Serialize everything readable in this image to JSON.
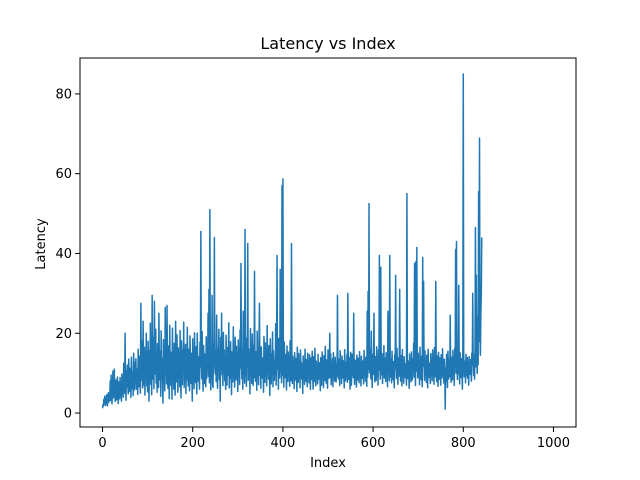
{
  "chart_data": {
    "type": "line",
    "title": "Latency vs Index",
    "xlabel": "Index",
    "ylabel": "Latency",
    "xlim": [
      -50,
      1050
    ],
    "ylim": [
      -3.5,
      89
    ],
    "grid": false,
    "x_ticks": [
      0,
      200,
      400,
      600,
      800,
      1000
    ],
    "y_ticks": [
      0,
      20,
      40,
      60,
      80
    ],
    "x_tick_labels": [
      "0",
      "200",
      "400",
      "600",
      "800",
      "1000"
    ],
    "y_tick_labels": [
      "0",
      "20",
      "40",
      "60",
      "80"
    ],
    "series": [
      {
        "color": "#1f77b4",
        "x_start": 0,
        "x_step": 1,
        "values": [
          1.2,
          2.1,
          1.8,
          3.5,
          2.4,
          4.2,
          1.9,
          2.6,
          3.0,
          4.6,
          2.2,
          1.8,
          3.9,
          5.1,
          2.7,
          4.0,
          3.2,
          8.0,
          3.1,
          9.5,
          5.0,
          2.3,
          6.0,
          10.5,
          3.8,
          7.4,
          11.0,
          5.6,
          2.9,
          4.8,
          8.3,
          3.3,
          6.7,
          9.0,
          4.1,
          2.4,
          7.8,
          5.2,
          3.6,
          8.9,
          4.5,
          6.2,
          3.0,
          9.8,
          5.5,
          7.1,
          4.0,
          12.5,
          6.4,
          5.0,
          20.0,
          8.0,
          3.2,
          10.5,
          6.5,
          12.0,
          7.3,
          4.8,
          13.5,
          9.0,
          5.4,
          11.2,
          7.6,
          3.9,
          14.0,
          8.8,
          6.1,
          10.3,
          4.4,
          15.0,
          9.6,
          5.8,
          12.7,
          7.9,
          13.6,
          6.0,
          11.0,
          8.4,
          4.7,
          16.0,
          10.0,
          6.6,
          14.2,
          9.1,
          5.0,
          27.5,
          8.2,
          12.0,
          18.0,
          6.3,
          23.0,
          10.8,
          7.0,
          16.5,
          4.5,
          13.2,
          9.4,
          20.0,
          6.8,
          12.8,
          5.3,
          18.0,
          11.4,
          3.0,
          15.6,
          8.1,
          22.5,
          7.2,
          10.6,
          4.6,
          29.5,
          12.0,
          8.5,
          19.0,
          6.1,
          28.0,
          14.3,
          9.8,
          21.0,
          7.5,
          13.0,
          5.2,
          17.4,
          10.2,
          6.4,
          25.0,
          11.8,
          8.3,
          15.5,
          4.2,
          20.6,
          9.0,
          13.7,
          6.8,
          2.5,
          18.4,
          7.9,
          12.4,
          5.6,
          26.5,
          10.8,
          14.9,
          7.3,
          27.0,
          11.3,
          6.2,
          16.8,
          9.4,
          3.6,
          22.0,
          12.1,
          7.0,
          15.2,
          9.8,
          3.5,
          21.3,
          8.6,
          12.9,
          6.0,
          17.5,
          10.5,
          4.5,
          23.0,
          13.4,
          7.8,
          19.6,
          11.2,
          5.2,
          16.3,
          8.9,
          14.4,
          6.6,
          20.7,
          9.7,
          3.8,
          18.1,
          12.6,
          7.1,
          15.8,
          10.3,
          22.8,
          6.4,
          13.1,
          9.2,
          17.2,
          4.9,
          14.6,
          8.3,
          21.5,
          11.8,
          6.8,
          16.0,
          9.9,
          5.6,
          19.3,
          12.2,
          7.5,
          15.0,
          10.7,
          3.0,
          18.6,
          8.8,
          13.9,
          6.1,
          20.1,
          11.4,
          7.7,
          16.6,
          9.3,
          4.8,
          20.0,
          12.9,
          8.0,
          14.1,
          10.1,
          6.0,
          17.7,
          11.6,
          45.5,
          13.3,
          8.6,
          20.4,
          9.4,
          5.5,
          16.9,
          12.5,
          7.4,
          14.8,
          10.5,
          6.6,
          19.1,
          8.7,
          13.6,
          11.0,
          25.0,
          9.2,
          31.0,
          7.6,
          51.0,
          14.6,
          5.8,
          12.4,
          8.9,
          29.5,
          7.3,
          6.4,
          17.3,
          13.0,
          44.0,
          11.5,
          9.8,
          15.7,
          7.9,
          24.5,
          10.6,
          6.2,
          16.2,
          12.8,
          21.0,
          8.4,
          14.4,
          3.0,
          18.9,
          11.1,
          25.0,
          9.6,
          13.5,
          6.9,
          20.2,
          10.2,
          15.8,
          8.1,
          12.9,
          5.9,
          19.5,
          11.8,
          7.0,
          16.4,
          9.5,
          14.0,
          22.6,
          6.3,
          12.3,
          8.7,
          17.9,
          10.9,
          4.6,
          15.3,
          13.2,
          7.8,
          21.6,
          9.1,
          11.7,
          6.5,
          19.0,
          14.5,
          8.3,
          16.7,
          10.4,
          12.1,
          5.4,
          18.3,
          9.9,
          14.8,
          7.2,
          20.8,
          11.3,
          37.5,
          13.4,
          8.6,
          15.9,
          6.0,
          25.5,
          10.5,
          12.7,
          7.5,
          46.0,
          9.3,
          13.9,
          6.7,
          18.8,
          11.9,
          42.5,
          8.2,
          16.1,
          9.7,
          13.0,
          4.8,
          21.2,
          10.8,
          14.2,
          7.4,
          19.8,
          12.5,
          6.9,
          17.0,
          9.0,
          35.5,
          11.6,
          8.0,
          15.4,
          13.7,
          5.7,
          20.5,
          10.1,
          12.9,
          7.1,
          18.1,
          27.5,
          9.5,
          14.5,
          6.2,
          16.6,
          11.2,
          8.8,
          13.8,
          10.4,
          5.2,
          19.2,
          12.3,
          7.7,
          17.6,
          9.1,
          15.0,
          6.8,
          21.9,
          11.1,
          13.3,
          8.5,
          16.9,
          10.7,
          4.4,
          18.6,
          12.6,
          7.3,
          14.9,
          9.8,
          20.3,
          6.6,
          15.6,
          11.5,
          8.2,
          13.4,
          9.6,
          22.4,
          7.0,
          16.2,
          39.5,
          11.0,
          14.1,
          6.0,
          18.7,
          12.2,
          8.8,
          36.0,
          10.3,
          15.5,
          7.6,
          57.0,
          9.4,
          58.7,
          13.0,
          6.5,
          17.8,
          11.7,
          8.9,
          14.7,
          10.0,
          5.8,
          16.8,
          12.4,
          7.9,
          15.3,
          9.2,
          13.6,
          6.7,
          18.1,
          11.4,
          8.1,
          42.5,
          10.6,
          7.4,
          14.2,
          9.9,
          12.8,
          6.1,
          15.1,
          11.0,
          8.3,
          13.7,
          10.2,
          5.4,
          16.5,
          12.0,
          7.7,
          14.9,
          9.0,
          13.1,
          6.3,
          15.8,
          11.6,
          8.6,
          12.5,
          10.5,
          4.9,
          14.3,
          9.5,
          12.9,
          7.2,
          16.0,
          11.1,
          8.0,
          13.4,
          10.0,
          6.6,
          15.0,
          9.3,
          12.2,
          7.6,
          14.6,
          10.8,
          5.9,
          13.8,
          11.4,
          8.4,
          15.5,
          9.8,
          6.0,
          14.1,
          12.3,
          7.9,
          16.2,
          10.4,
          6.8,
          13.0,
          9.1,
          11.8,
          7.3,
          14.7,
          10.2,
          8.5,
          12.6,
          9.6,
          5.6,
          13.9,
          11.0,
          7.0,
          15.3,
          9.4,
          12.0,
          6.4,
          14.4,
          10.7,
          8.2,
          16.7,
          9.9,
          7.5,
          13.3,
          11.9,
          6.2,
          15.8,
          10.1,
          8.7,
          12.4,
          20.0,
          9.0,
          14.9,
          7.1,
          11.5,
          10.3,
          13.6,
          6.6,
          15.1,
          9.7,
          12.8,
          8.0,
          14.0,
          10.9,
          7.8,
          12.2,
          9.3,
          29.5,
          11.6,
          8.6,
          13.5,
          10.0,
          6.9,
          15.6,
          9.5,
          12.5,
          7.4,
          14.3,
          11.3,
          8.8,
          13.1,
          9.8,
          6.3,
          15.9,
          10.6,
          8.1,
          12.7,
          9.1,
          14.6,
          7.7,
          30.0,
          11.8,
          8.4,
          13.9,
          10.4,
          6.0,
          15.2,
          12.1,
          7.0,
          14.8,
          9.6,
          11.1,
          8.9,
          25.0,
          10.5,
          7.2,
          13.3,
          9.2,
          12.9,
          6.5,
          14.5,
          11.4,
          8.3,
          13.7,
          10.0,
          7.6,
          15.4,
          9.4,
          12.3,
          6.8,
          14.2,
          10.8,
          8.7,
          13.0,
          11.7,
          7.3,
          15.7,
          9.9,
          12.6,
          8.0,
          14.0,
          10.3,
          6.7,
          25.5,
          9.0,
          30.5,
          11.0,
          52.5,
          10.1,
          12.2,
          16.0,
          8.6,
          20.5,
          11.2,
          6.4,
          14.7,
          9.7,
          12.5,
          25.0,
          10.6,
          7.8,
          14.1,
          11.5,
          8.2,
          16.6,
          9.3,
          13.2,
          7.0,
          15.8,
          10.9,
          39.5,
          12.0,
          8.5,
          36.5,
          11.3,
          9.6,
          14.9,
          7.4,
          12.8,
          10.2,
          16.9,
          8.8,
          13.7,
          11.6,
          7.9,
          15.1,
          9.4,
          12.4,
          6.6,
          25.5,
          10.4,
          14.3,
          8.1,
          39.5,
          11.8,
          9.0,
          13.5,
          7.6,
          15.5,
          10.7,
          8.4,
          12.9,
          9.9,
          6.3,
          14.6,
          11.1,
          34.5,
          12.1,
          8.7,
          16.2,
          10.3,
          7.2,
          13.8,
          9.2,
          12.7,
          31.0,
          10.8,
          8.0,
          14.4,
          11.4,
          6.8,
          15.9,
          9.6,
          13.1,
          7.5,
          14.1,
          10.1,
          8.9,
          12.3,
          11.2,
          7.0,
          55.0,
          12.5,
          8.6,
          13.0,
          10.6,
          6.2,
          14.8,
          9.7,
          12.0,
          7.8,
          15.3,
          11.0,
          8.3,
          13.6,
          10.2,
          17.5,
          9.0,
          37.5,
          11.8,
          6.9,
          38.0,
          10.5,
          41.5,
          13.4,
          8.8,
          15.0,
          9.4,
          12.7,
          7.1,
          16.5,
          11.5,
          8.4,
          14.2,
          10.0,
          6.6,
          39.0,
          11.7,
          33.0,
          12.9,
          8.2,
          15.6,
          9.8,
          13.2,
          7.7,
          14.5,
          10.9,
          6.3,
          16.0,
          11.4,
          8.9,
          12.5,
          10.4,
          7.4,
          14.9,
          9.5,
          12.2,
          8.1,
          15.8,
          11.1,
          13.0,
          7.2,
          16.4,
          10.7,
          9.1,
          33.0,
          11.9,
          7.9,
          14.3,
          10.2,
          6.7,
          15.2,
          12.7,
          8.5,
          13.8,
          9.9,
          7.0,
          14.6,
          11.6,
          8.8,
          16.1,
          10.5,
          12.4,
          7.5,
          13.5,
          9.6,
          1.0,
          11.3,
          8.0,
          14.7,
          10.1,
          6.4,
          15.5,
          12.0,
          8.6,
          13.3,
          9.2,
          24.5,
          11.0,
          7.7,
          14.0,
          10.8,
          8.3,
          15.7,
          9.4,
          12.8,
          6.9,
          16.2,
          11.5,
          41.0,
          10.0,
          43.0,
          12.6,
          8.4,
          14.4,
          9.8,
          32.0,
          11.2,
          7.3,
          15.1,
          10.6,
          8.9,
          13.6,
          12.2,
          6.0,
          16.6,
          85.0,
          14.2,
          9.1,
          13.0,
          11.9,
          7.6,
          14.7,
          10.4,
          9.3,
          13.9,
          8.7,
          12.5,
          7.0,
          14.1,
          11.1,
          9.7,
          13.4,
          10.5,
          8.0,
          15.0,
          12.0,
          30.0,
          12.7,
          9.4,
          14.5,
          8.5,
          16.3,
          46.5,
          11.6,
          34.5,
          13.7,
          9.9,
          24.0,
          12.1,
          55.5,
          18.0,
          68.9,
          20.5,
          14.5,
          25.0,
          30.0,
          44.0
        ]
      }
    ]
  }
}
